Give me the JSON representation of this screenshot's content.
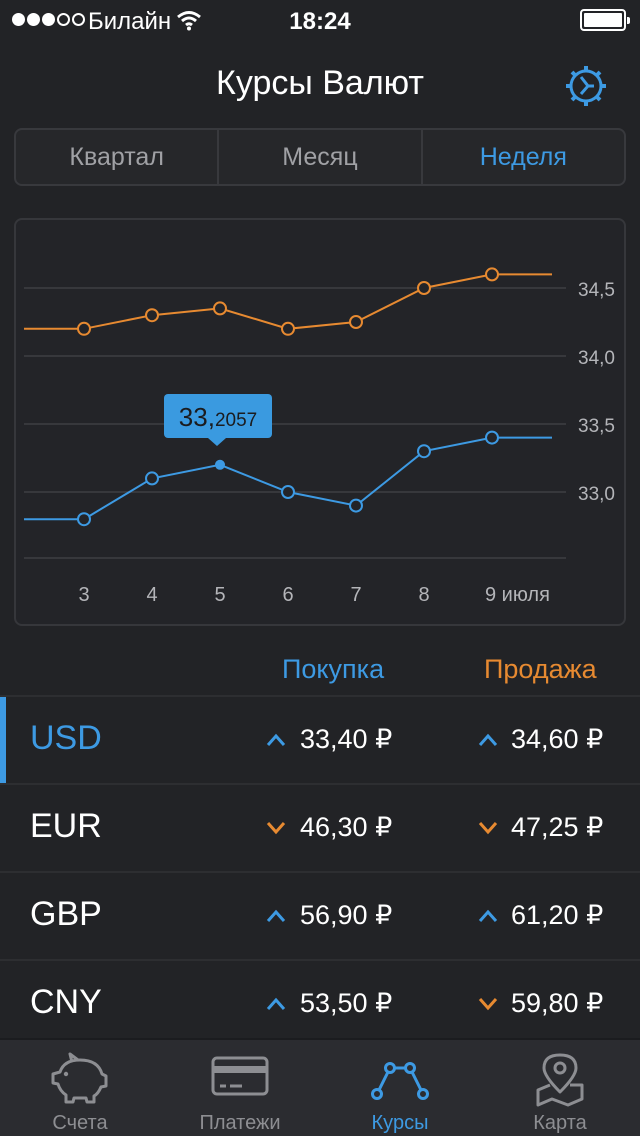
{
  "status_bar": {
    "carrier": "Билайн",
    "time": "18:24"
  },
  "header": {
    "title": "Курсы Валют"
  },
  "segments": [
    {
      "label": "Квартал",
      "active": false
    },
    {
      "label": "Месяц",
      "active": false
    },
    {
      "label": "Неделя",
      "active": true
    }
  ],
  "chart_data": {
    "type": "line",
    "x": [
      "3",
      "4",
      "5",
      "6",
      "7",
      "8",
      "9 июля"
    ],
    "series": [
      {
        "name": "Продажа",
        "color": "#e78a31",
        "values": [
          34.2,
          34.3,
          34.35,
          34.2,
          34.25,
          34.5,
          34.6
        ]
      },
      {
        "name": "Покупка",
        "color": "#3d9ae3",
        "values": [
          32.8,
          33.1,
          33.2,
          33.0,
          32.9,
          33.3,
          33.4
        ]
      }
    ],
    "y_ticks": [
      "34,5",
      "34,0",
      "33,5",
      "33,0"
    ],
    "ylim": [
      32.5,
      34.75
    ],
    "grid": true,
    "highlight": {
      "series": "Покупка",
      "x": "5",
      "label_int": "33,",
      "label_frac": "2057"
    }
  },
  "table": {
    "buy_header": "Покупка",
    "sell_header": "Продажа",
    "rows": [
      {
        "currency": "USD",
        "buy": "33,40 ₽",
        "buy_trend": "up",
        "sell": "34,60 ₽",
        "sell_trend": "up",
        "selected": true
      },
      {
        "currency": "EUR",
        "buy": "46,30 ₽",
        "buy_trend": "down",
        "sell": "47,25 ₽",
        "sell_trend": "down",
        "selected": false
      },
      {
        "currency": "GBP",
        "buy": "56,90 ₽",
        "buy_trend": "up",
        "sell": "61,20 ₽",
        "sell_trend": "up",
        "selected": false
      },
      {
        "currency": "CNY",
        "buy": "53,50 ₽",
        "buy_trend": "up",
        "sell": "59,80 ₽",
        "sell_trend": "down",
        "selected": false
      }
    ]
  },
  "tabs": [
    {
      "label": "Счета",
      "icon": "piggy-bank-icon",
      "active": false
    },
    {
      "label": "Платежи",
      "icon": "credit-card-icon",
      "active": false
    },
    {
      "label": "Курсы",
      "icon": "rates-chart-icon",
      "active": true
    },
    {
      "label": "Карта",
      "icon": "map-pin-icon",
      "active": false
    }
  ],
  "colors": {
    "accent": "#3d9ae3",
    "sell": "#e78a31",
    "background": "#222326",
    "up": "#3d9ae3",
    "down": "#e78a31"
  }
}
